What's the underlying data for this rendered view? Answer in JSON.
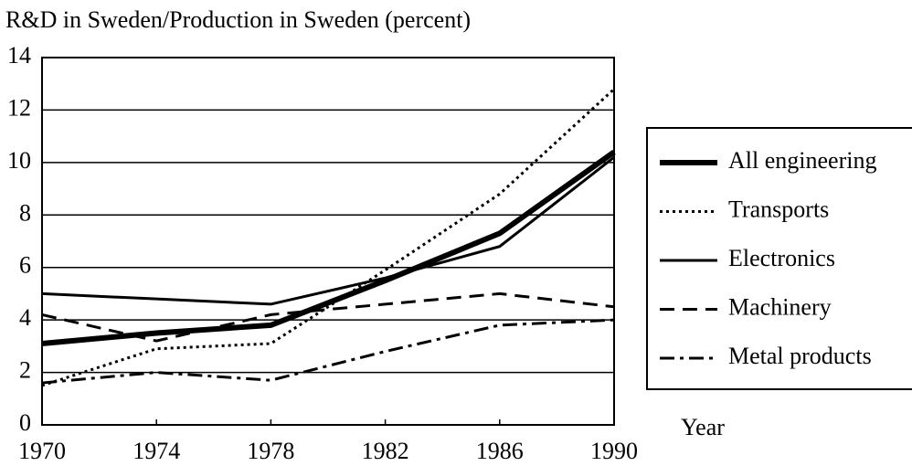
{
  "chart_data": {
    "type": "line",
    "title": "R&D in Sweden/Production in Sweden (percent)",
    "x_label": "Year",
    "x": [
      1970,
      1974,
      1978,
      1982,
      1986,
      1990
    ],
    "xlim": [
      1970,
      1990
    ],
    "xticks": [
      1970,
      1974,
      1978,
      1982,
      1986,
      1990
    ],
    "ylim": [
      0,
      14
    ],
    "yticks": [
      0,
      2,
      4,
      6,
      8,
      10,
      12,
      14
    ],
    "grid": true,
    "legend": "right",
    "series": [
      {
        "name": "All engineering",
        "color": "#000000",
        "style": "solid",
        "width": 6,
        "values": [
          3.1,
          3.5,
          3.8,
          5.5,
          7.3,
          10.4
        ]
      },
      {
        "name": "Transports",
        "color": "#000000",
        "style": "dotted",
        "width": 3,
        "values": [
          1.5,
          2.9,
          3.1,
          5.9,
          8.8,
          12.8
        ]
      },
      {
        "name": "Electronics",
        "color": "#000000",
        "style": "solid",
        "width": 3,
        "values": [
          5.0,
          4.8,
          4.6,
          5.6,
          6.8,
          10.2
        ]
      },
      {
        "name": "Machinery",
        "color": "#000000",
        "style": "dashed",
        "width": 3,
        "values": [
          4.2,
          3.2,
          4.2,
          4.6,
          5.0,
          4.5
        ]
      },
      {
        "name": "Metal products",
        "color": "#000000",
        "style": "dashdot",
        "width": 3,
        "values": [
          1.6,
          2.0,
          1.7,
          2.8,
          3.8,
          4.0
        ]
      }
    ]
  }
}
